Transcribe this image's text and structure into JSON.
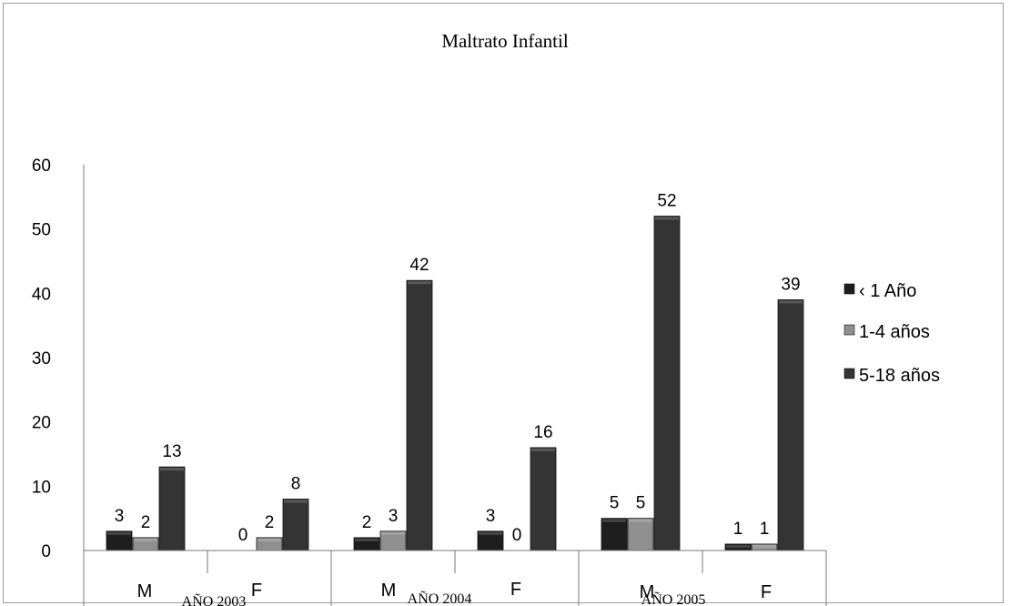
{
  "chart_data": {
    "type": "bar",
    "title": "Maltrato Infantil",
    "xlabel": "",
    "ylabel": "",
    "ylim": [
      0,
      60
    ],
    "y_ticks": [
      "0",
      "10",
      "20",
      "30",
      "40",
      "50",
      "60"
    ],
    "categories": [
      "M",
      "F",
      "M",
      "F",
      "M",
      "F"
    ],
    "groups": [
      "AÑO 2003",
      "AÑO 2004",
      "AÑO 2005"
    ],
    "series": [
      {
        "name": "‹ 1 Año",
        "values": [
          3,
          0,
          2,
          3,
          5,
          1
        ]
      },
      {
        "name": "1-4 años",
        "values": [
          2,
          2,
          3,
          0,
          5,
          1
        ]
      },
      {
        "name": "5-18 años",
        "values": [
          13,
          8,
          42,
          16,
          52,
          39
        ]
      }
    ],
    "legend_position": "right",
    "grid": false,
    "colors": {
      "series": [
        "#1e1e1e",
        "#8f8f8f",
        "#343434"
      ],
      "axis": "#7a7a7a"
    }
  }
}
